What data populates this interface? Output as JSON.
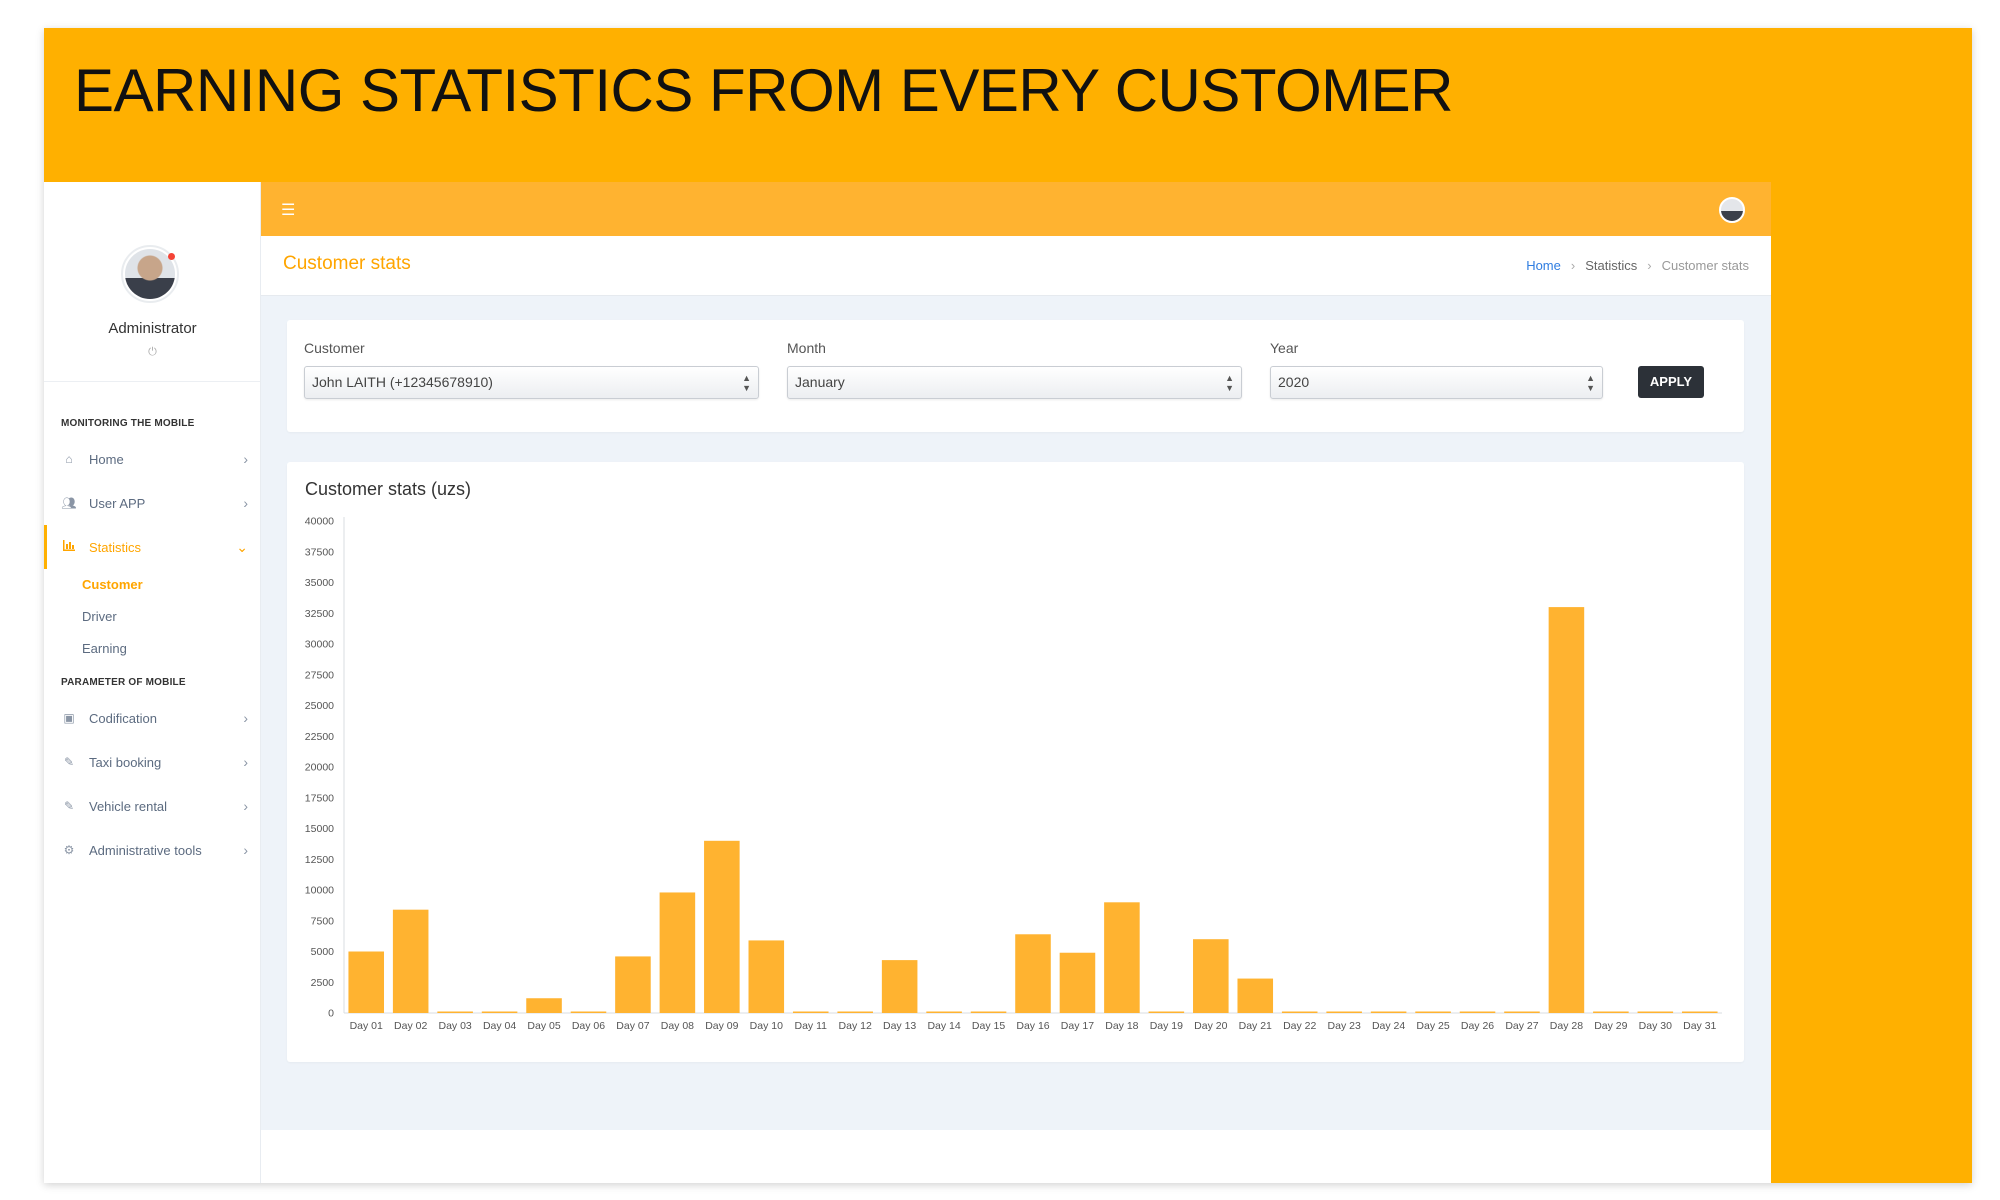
{
  "banner": {
    "title": "EARNING STATISTICS FROM EVERY CUSTOMER"
  },
  "sidebar": {
    "user": {
      "name": "Administrator",
      "avatar_icon": "user-avatar",
      "power_icon": "power-icon"
    },
    "sections": [
      {
        "title": "MONITORING THE MOBILE"
      },
      {
        "title": "PARAMETER OF MOBILE"
      }
    ],
    "items": [
      {
        "label": "Home",
        "icon": "home-icon"
      },
      {
        "label": "User APP",
        "icon": "users-icon"
      },
      {
        "label": "Statistics",
        "icon": "bar-chart-icon",
        "active": true
      },
      {
        "label": "Codification",
        "icon": "codification-icon"
      },
      {
        "label": "Taxi booking",
        "icon": "pencil-icon"
      },
      {
        "label": "Vehicle rental",
        "icon": "pencil-icon"
      },
      {
        "label": "Administrative tools",
        "icon": "gear-icon"
      }
    ],
    "sub_items": [
      {
        "label": "Customer",
        "active": true
      },
      {
        "label": "Driver"
      },
      {
        "label": "Earning"
      }
    ]
  },
  "topbar": {
    "menu_icon": "hamburger-icon",
    "avatar_icon": "user-avatar"
  },
  "page": {
    "title": "Customer stats",
    "breadcrumb": [
      "Home",
      "Statistics",
      "Customer stats"
    ]
  },
  "filters": {
    "customer": {
      "label": "Customer",
      "value": "John LAITH (+12345678910)"
    },
    "month": {
      "label": "Month",
      "value": "January"
    },
    "year": {
      "label": "Year",
      "value": "2020"
    },
    "apply_label": "APPLY"
  },
  "colors": {
    "accent": "#ffb000",
    "bar": "#ffb330",
    "title_orange": "#ffa500",
    "link_blue": "#2f7de1"
  },
  "chart_data": {
    "type": "bar",
    "title": "Customer stats (uzs)",
    "categories": [
      "Day 01",
      "Day 02",
      "Day 03",
      "Day 04",
      "Day 05",
      "Day 06",
      "Day 07",
      "Day 08",
      "Day 09",
      "Day 10",
      "Day 11",
      "Day 12",
      "Day 13",
      "Day 14",
      "Day 15",
      "Day 16",
      "Day 17",
      "Day 18",
      "Day 19",
      "Day 20",
      "Day 21",
      "Day 22",
      "Day 23",
      "Day 24",
      "Day 25",
      "Day 26",
      "Day 27",
      "Day 28",
      "Day 29",
      "Day 30",
      "Day 31"
    ],
    "values": [
      5000,
      8400,
      0,
      0,
      1200,
      0,
      4600,
      9800,
      14000,
      5900,
      0,
      0,
      4300,
      0,
      0,
      6400,
      4900,
      9000,
      0,
      6000,
      2800,
      0,
      0,
      0,
      0,
      0,
      0,
      33000,
      0,
      0,
      0
    ],
    "ylim": [
      0,
      40000
    ],
    "yticks": [
      0,
      2500,
      5000,
      7500,
      10000,
      12500,
      15000,
      17500,
      20000,
      22500,
      25000,
      27500,
      30000,
      32500,
      35000,
      37500,
      40000
    ],
    "grid": false
  }
}
